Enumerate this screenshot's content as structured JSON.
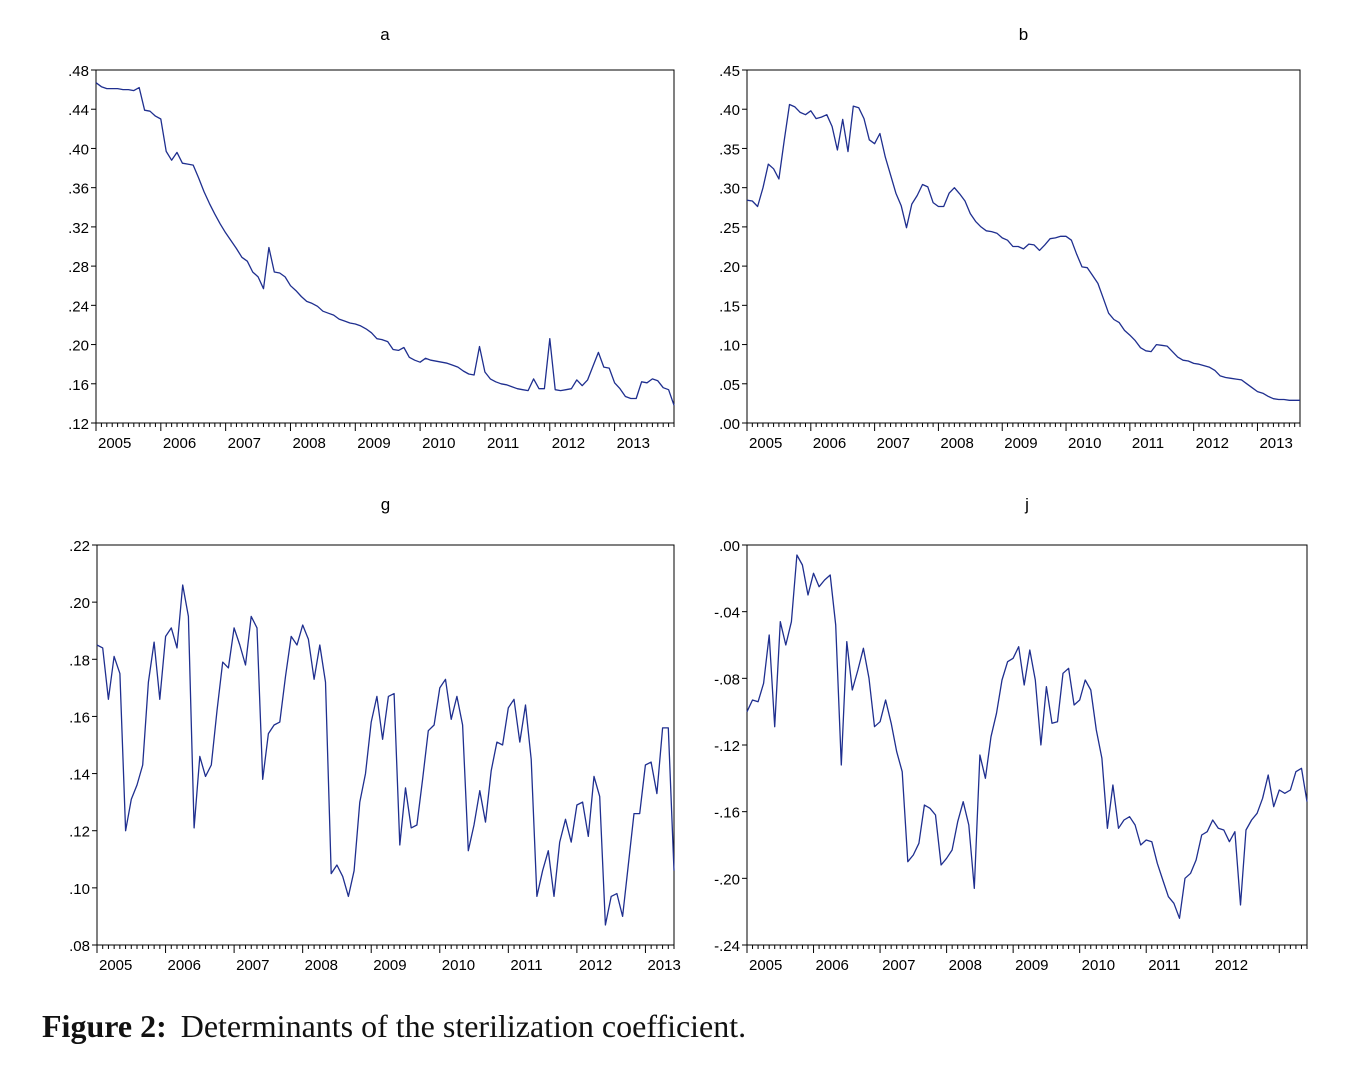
{
  "caption": {
    "label": "Figure 2:",
    "text": "Determinants of the sterilization coefficient."
  },
  "colors": {
    "line": "#1f2f8f",
    "axis": "#000000"
  },
  "chart_data": [
    {
      "id": "a",
      "type": "line",
      "title": "a",
      "x_tick_labels": [
        "2005",
        "2006",
        "2007",
        "2008",
        "2009",
        "2010",
        "2011",
        "2012",
        "2013"
      ],
      "x_start": 2005.0,
      "x_step": 0.08333,
      "ylim": [
        0.12,
        0.48
      ],
      "y_ticks": [
        0.12,
        0.16,
        0.2,
        0.24,
        0.28,
        0.32,
        0.36,
        0.4,
        0.44,
        0.48
      ],
      "y_tick_labels": [
        ".12",
        ".16",
        ".20",
        ".24",
        ".28",
        ".32",
        ".36",
        ".40",
        ".44",
        ".48"
      ],
      "values": [
        0.467,
        0.463,
        0.461,
        0.461,
        0.461,
        0.46,
        0.46,
        0.459,
        0.462,
        0.439,
        0.438,
        0.433,
        0.43,
        0.397,
        0.388,
        0.396,
        0.385,
        0.384,
        0.383,
        0.37,
        0.356,
        0.344,
        0.333,
        0.323,
        0.314,
        0.306,
        0.298,
        0.289,
        0.285,
        0.274,
        0.269,
        0.257,
        0.299,
        0.274,
        0.273,
        0.269,
        0.26,
        0.255,
        0.249,
        0.244,
        0.242,
        0.239,
        0.234,
        0.232,
        0.23,
        0.226,
        0.224,
        0.222,
        0.221,
        0.219,
        0.216,
        0.212,
        0.206,
        0.205,
        0.203,
        0.195,
        0.194,
        0.197,
        0.187,
        0.184,
        0.182,
        0.186,
        0.184,
        0.183,
        0.182,
        0.181,
        0.179,
        0.177,
        0.173,
        0.17,
        0.169,
        0.198,
        0.172,
        0.165,
        0.162,
        0.16,
        0.159,
        0.157,
        0.155,
        0.154,
        0.153,
        0.165,
        0.155,
        0.155,
        0.206,
        0.154,
        0.153,
        0.154,
        0.155,
        0.164,
        0.158,
        0.164,
        0.178,
        0.192,
        0.177,
        0.176,
        0.161,
        0.155,
        0.147,
        0.145,
        0.145,
        0.162,
        0.161,
        0.165,
        0.163,
        0.156,
        0.154,
        0.138
      ]
    },
    {
      "id": "b",
      "type": "line",
      "title": "b",
      "x_tick_labels": [
        "2005",
        "2006",
        "2007",
        "2008",
        "2009",
        "2010",
        "2011",
        "2012",
        "2013"
      ],
      "x_start": 2005.0,
      "x_step": 0.08333,
      "ylim": [
        0.0,
        0.45
      ],
      "y_ticks": [
        0.0,
        0.05,
        0.1,
        0.15,
        0.2,
        0.25,
        0.3,
        0.35,
        0.4,
        0.45
      ],
      "y_tick_labels": [
        ".00",
        ".05",
        ".10",
        ".15",
        ".20",
        ".25",
        ".30",
        ".35",
        ".40",
        ".45"
      ],
      "values": [
        0.284,
        0.283,
        0.276,
        0.3,
        0.33,
        0.324,
        0.311,
        0.36,
        0.406,
        0.403,
        0.396,
        0.393,
        0.398,
        0.388,
        0.39,
        0.393,
        0.378,
        0.348,
        0.387,
        0.346,
        0.404,
        0.402,
        0.388,
        0.361,
        0.356,
        0.369,
        0.339,
        0.316,
        0.293,
        0.277,
        0.249,
        0.279,
        0.29,
        0.304,
        0.301,
        0.281,
        0.276,
        0.276,
        0.293,
        0.3,
        0.292,
        0.283,
        0.267,
        0.257,
        0.25,
        0.245,
        0.244,
        0.242,
        0.236,
        0.233,
        0.225,
        0.225,
        0.222,
        0.228,
        0.227,
        0.22,
        0.227,
        0.235,
        0.236,
        0.238,
        0.238,
        0.233,
        0.215,
        0.199,
        0.198,
        0.188,
        0.178,
        0.159,
        0.14,
        0.132,
        0.128,
        0.118,
        0.112,
        0.105,
        0.096,
        0.092,
        0.091,
        0.1,
        0.099,
        0.098,
        0.091,
        0.084,
        0.08,
        0.079,
        0.076,
        0.075,
        0.073,
        0.071,
        0.067,
        0.06,
        0.058,
        0.057,
        0.056,
        0.055,
        0.05,
        0.045,
        0.04,
        0.038,
        0.034,
        0.031,
        0.03,
        0.03,
        0.029,
        0.029,
        0.029
      ]
    },
    {
      "id": "g",
      "type": "line",
      "title": "g",
      "x_tick_labels": [
        "2005",
        "2006",
        "2007",
        "2008",
        "2009",
        "2010",
        "2011",
        "2012",
        "2013"
      ],
      "x_start": 2005.0,
      "x_step": 0.08333,
      "ylim": [
        0.08,
        0.22
      ],
      "y_ticks": [
        0.08,
        0.1,
        0.12,
        0.14,
        0.16,
        0.18,
        0.2,
        0.22
      ],
      "y_tick_labels": [
        ".08",
        ".10",
        ".12",
        ".14",
        ".16",
        ".18",
        ".20",
        ".22"
      ],
      "values": [
        0.185,
        0.184,
        0.166,
        0.181,
        0.175,
        0.12,
        0.131,
        0.136,
        0.143,
        0.172,
        0.186,
        0.166,
        0.188,
        0.191,
        0.184,
        0.206,
        0.195,
        0.121,
        0.146,
        0.139,
        0.143,
        0.162,
        0.179,
        0.177,
        0.191,
        0.185,
        0.178,
        0.195,
        0.191,
        0.138,
        0.154,
        0.157,
        0.158,
        0.174,
        0.188,
        0.185,
        0.192,
        0.187,
        0.173,
        0.185,
        0.172,
        0.105,
        0.108,
        0.104,
        0.097,
        0.106,
        0.13,
        0.14,
        0.158,
        0.167,
        0.152,
        0.167,
        0.168,
        0.115,
        0.135,
        0.121,
        0.122,
        0.138,
        0.155,
        0.157,
        0.17,
        0.173,
        0.159,
        0.167,
        0.157,
        0.113,
        0.122,
        0.134,
        0.123,
        0.141,
        0.151,
        0.15,
        0.163,
        0.166,
        0.151,
        0.164,
        0.145,
        0.097,
        0.106,
        0.113,
        0.097,
        0.116,
        0.124,
        0.116,
        0.129,
        0.13,
        0.118,
        0.139,
        0.132,
        0.087,
        0.097,
        0.098,
        0.09,
        0.108,
        0.126,
        0.126,
        0.143,
        0.144,
        0.133,
        0.156,
        0.156,
        0.106
      ]
    },
    {
      "id": "j",
      "type": "line",
      "title": "j",
      "x_tick_labels": [
        "2005",
        "2006",
        "2007",
        "2008",
        "2009",
        "2010",
        "2011",
        "2012"
      ],
      "x_start": 2005.0,
      "x_step": 0.08333,
      "ylim": [
        -0.24,
        0.0
      ],
      "y_ticks": [
        -0.24,
        -0.2,
        -0.16,
        -0.12,
        -0.08,
        -0.04,
        0.0
      ],
      "y_tick_labels": [
        "-.24",
        "-.20",
        "-.16",
        "-.12",
        "-.08",
        "-.04",
        ".00"
      ],
      "values": [
        -0.1,
        -0.093,
        -0.094,
        -0.083,
        -0.054,
        -0.109,
        -0.046,
        -0.06,
        -0.046,
        -0.006,
        -0.012,
        -0.03,
        -0.017,
        -0.025,
        -0.021,
        -0.018,
        -0.048,
        -0.132,
        -0.058,
        -0.087,
        -0.075,
        -0.062,
        -0.08,
        -0.109,
        -0.106,
        -0.093,
        -0.107,
        -0.124,
        -0.136,
        -0.19,
        -0.186,
        -0.179,
        -0.156,
        -0.158,
        -0.162,
        -0.192,
        -0.188,
        -0.183,
        -0.166,
        -0.154,
        -0.168,
        -0.206,
        -0.126,
        -0.14,
        -0.115,
        -0.101,
        -0.081,
        -0.07,
        -0.068,
        -0.061,
        -0.084,
        -0.063,
        -0.081,
        -0.12,
        -0.085,
        -0.107,
        -0.106,
        -0.077,
        -0.074,
        -0.096,
        -0.093,
        -0.081,
        -0.087,
        -0.111,
        -0.128,
        -0.17,
        -0.144,
        -0.17,
        -0.165,
        -0.163,
        -0.168,
        -0.18,
        -0.177,
        -0.178,
        -0.191,
        -0.201,
        -0.211,
        -0.215,
        -0.224,
        -0.2,
        -0.197,
        -0.189,
        -0.174,
        -0.172,
        -0.165,
        -0.17,
        -0.171,
        -0.178,
        -0.172,
        -0.216,
        -0.171,
        -0.165,
        -0.161,
        -0.152,
        -0.138,
        -0.157,
        -0.147,
        -0.149,
        -0.147,
        -0.136,
        -0.134,
        -0.154
      ]
    }
  ]
}
